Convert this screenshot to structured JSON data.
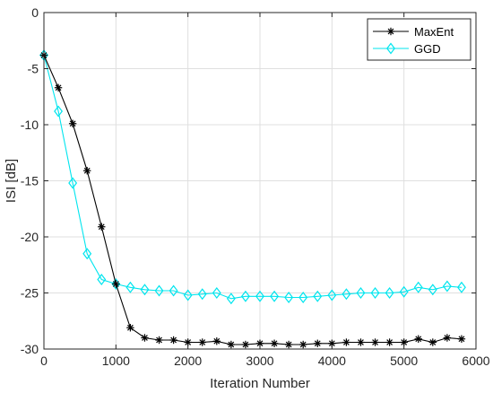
{
  "chart_data": {
    "type": "line",
    "title": "",
    "xlabel": "Iteration Number",
    "ylabel": "ISI [dB]",
    "xlim": [
      0,
      6000
    ],
    "ylim": [
      -30,
      0
    ],
    "xticks": [
      0,
      1000,
      2000,
      3000,
      4000,
      5000,
      6000
    ],
    "yticks": [
      0,
      -5,
      -10,
      -15,
      -20,
      -25,
      -30
    ],
    "xtick_labels": [
      "0",
      "1000",
      "2000",
      "3000",
      "4000",
      "5000",
      "6000"
    ],
    "ytick_labels": [
      "0",
      "-5",
      "-10",
      "-15",
      "-20",
      "-25",
      "-30"
    ],
    "grid": true,
    "legend_position": "top-right",
    "series": [
      {
        "name": "MaxEnt",
        "color": "#000000",
        "marker": "asterisk",
        "x": [
          0,
          200,
          400,
          600,
          800,
          1000,
          1200,
          1400,
          1600,
          1800,
          2000,
          2200,
          2400,
          2600,
          2800,
          3000,
          3200,
          3400,
          3600,
          3800,
          4000,
          4200,
          4400,
          4600,
          4800,
          5000,
          5200,
          5400,
          5600,
          5800
        ],
        "y": [
          -3.8,
          -6.7,
          -9.9,
          -14.1,
          -19.1,
          -24.2,
          -28.1,
          -29.0,
          -29.2,
          -29.2,
          -29.4,
          -29.4,
          -29.3,
          -29.6,
          -29.6,
          -29.5,
          -29.5,
          -29.6,
          -29.6,
          -29.5,
          -29.5,
          -29.4,
          -29.4,
          -29.4,
          -29.4,
          -29.4,
          -29.1,
          -29.4,
          -29.0,
          -29.1
        ]
      },
      {
        "name": "GGD",
        "color": "#00e5ee",
        "marker": "diamond",
        "x": [
          0,
          200,
          400,
          600,
          800,
          1000,
          1200,
          1400,
          1600,
          1800,
          2000,
          2200,
          2400,
          2600,
          2800,
          3000,
          3200,
          3400,
          3600,
          3800,
          4000,
          4200,
          4400,
          4600,
          4800,
          5000,
          5200,
          5400,
          5600,
          5800
        ],
        "y": [
          -3.8,
          -8.8,
          -15.2,
          -21.5,
          -23.8,
          -24.2,
          -24.5,
          -24.7,
          -24.8,
          -24.8,
          -25.2,
          -25.1,
          -25.0,
          -25.5,
          -25.3,
          -25.3,
          -25.3,
          -25.4,
          -25.4,
          -25.3,
          -25.2,
          -25.1,
          -25.0,
          -25.0,
          -25.0,
          -24.9,
          -24.5,
          -24.7,
          -24.4,
          -24.5
        ]
      }
    ]
  }
}
